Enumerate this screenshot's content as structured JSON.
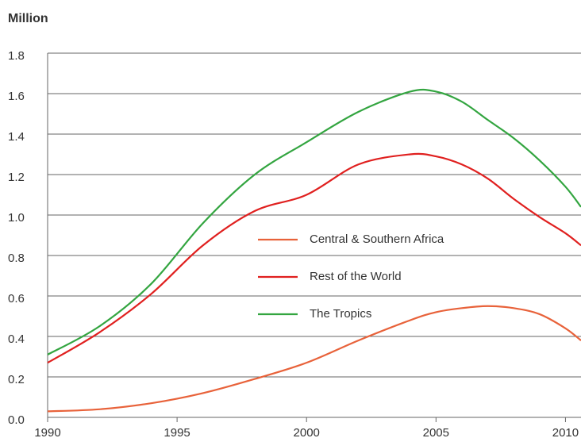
{
  "chart_data": {
    "type": "line",
    "y_axis_label": "Million",
    "x": [
      1990,
      1992,
      1994,
      1996,
      1998,
      2000,
      2002,
      2004,
      2005,
      2006,
      2007,
      2008,
      2009,
      2010,
      2010.6
    ],
    "series": [
      {
        "name": "Central & Southern Africa",
        "color": "#e8623a",
        "values": [
          0.03,
          0.04,
          0.07,
          0.12,
          0.19,
          0.27,
          0.38,
          0.48,
          0.52,
          0.54,
          0.55,
          0.54,
          0.51,
          0.44,
          0.38
        ]
      },
      {
        "name": "Rest of the World",
        "color": "#e0201f",
        "values": [
          0.27,
          0.42,
          0.61,
          0.85,
          1.02,
          1.1,
          1.25,
          1.3,
          1.29,
          1.25,
          1.18,
          1.08,
          0.99,
          0.91,
          0.85
        ]
      },
      {
        "name": "The Tropics",
        "color": "#33a540",
        "values": [
          0.31,
          0.45,
          0.66,
          0.96,
          1.2,
          1.36,
          1.51,
          1.61,
          1.61,
          1.56,
          1.47,
          1.38,
          1.27,
          1.14,
          1.04
        ]
      }
    ],
    "xlim": [
      1990,
      2010.6
    ],
    "xticks": [
      1990,
      1995,
      2000,
      2005,
      2010
    ],
    "ylim": [
      0,
      1.8
    ],
    "yticks": [
      {
        "value": 0,
        "label": "0.0"
      },
      0.2,
      0.4,
      0.6,
      0.8,
      {
        "value": 1,
        "label": "1.0"
      },
      1.2,
      1.4,
      1.6,
      1.8
    ],
    "grid": true
  }
}
